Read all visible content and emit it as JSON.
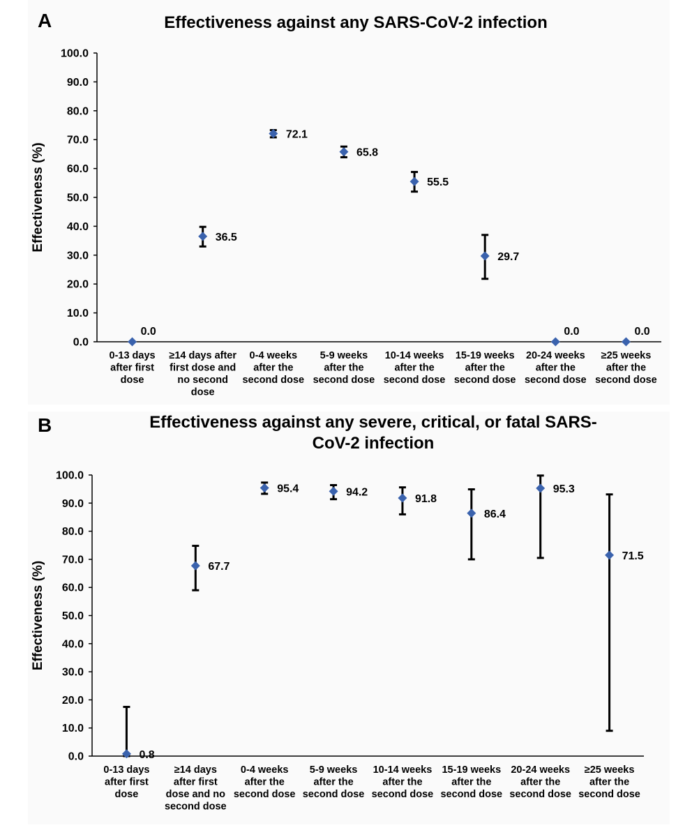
{
  "chart_data": [
    {
      "panel": "A",
      "type": "scatter",
      "title": "Effectiveness against any SARS-CoV-2 infection",
      "ylabel": "Effectiveness (%)",
      "xlabel": "",
      "ylim": [
        0,
        100
      ],
      "yticks": [
        "0.0",
        "10.0",
        "20.0",
        "30.0",
        "40.0",
        "50.0",
        "60.0",
        "70.0",
        "80.0",
        "90.0",
        "100.0"
      ],
      "categories": [
        [
          "0-13 days",
          "after first",
          "dose"
        ],
        [
          "≥14 days after",
          "first dose and",
          "no second",
          "dose"
        ],
        [
          "0-4 weeks",
          "after the",
          "second dose"
        ],
        [
          "5-9 weeks",
          "after the",
          "second dose"
        ],
        [
          "10-14 weeks",
          "after the",
          "second dose"
        ],
        [
          "15-19 weeks",
          "after the",
          "second dose"
        ],
        [
          "20-24 weeks",
          "after the",
          "second dose"
        ],
        [
          "≥25 weeks",
          "after the",
          "second dose"
        ]
      ],
      "values": [
        0.0,
        36.5,
        72.1,
        65.8,
        55.5,
        29.7,
        0.0,
        0.0
      ],
      "labels": [
        "0.0",
        "36.5",
        "72.1",
        "65.8",
        "55.5",
        "29.7",
        "0.0",
        "0.0"
      ],
      "ci_lower": [
        null,
        33.0,
        70.8,
        63.9,
        52.0,
        21.8,
        null,
        null
      ],
      "ci_upper": [
        null,
        39.8,
        73.3,
        67.6,
        58.8,
        37.0,
        null,
        null
      ],
      "marker_color": "#3a62ad",
      "grid": false,
      "legend": "none"
    },
    {
      "panel": "B",
      "type": "scatter",
      "title": "Effectiveness against any severe, critical, or fatal SARS-CoV-2 infection",
      "title_lines": [
        "Effectiveness against any severe, critical, or fatal SARS-",
        "CoV-2 infection"
      ],
      "ylabel": "Effectiveness (%)",
      "xlabel": "",
      "ylim": [
        0,
        100
      ],
      "yticks": [
        "0.0",
        "10.0",
        "20.0",
        "30.0",
        "40.0",
        "50.0",
        "60.0",
        "70.0",
        "80.0",
        "90.0",
        "100.0"
      ],
      "categories": [
        [
          "0-13 days",
          "after first",
          "dose"
        ],
        [
          "≥14 days",
          "after first",
          "dose and no",
          "second dose"
        ],
        [
          "0-4 weeks",
          "after the",
          "second dose"
        ],
        [
          "5-9 weeks",
          "after the",
          "second dose"
        ],
        [
          "10-14 weeks",
          "after the",
          "second dose"
        ],
        [
          "15-19 weeks",
          "after the",
          "second dose"
        ],
        [
          "20-24 weeks",
          "after the",
          "second dose"
        ],
        [
          "≥25 weeks",
          "after the",
          "second dose"
        ]
      ],
      "values": [
        0.8,
        67.7,
        95.4,
        94.2,
        91.8,
        86.4,
        95.3,
        71.5
      ],
      "labels": [
        "0.8",
        "67.7",
        "95.4",
        "94.2",
        "91.8",
        "86.4",
        "95.3",
        "71.5"
      ],
      "ci_lower": [
        0.0,
        59.0,
        93.3,
        91.4,
        86.0,
        70.0,
        70.5,
        9.0
      ],
      "ci_upper": [
        17.5,
        74.8,
        97.3,
        96.4,
        95.6,
        94.9,
        99.8,
        93.1
      ],
      "marker_color": "#3a62ad",
      "grid": false,
      "legend": "none"
    }
  ]
}
